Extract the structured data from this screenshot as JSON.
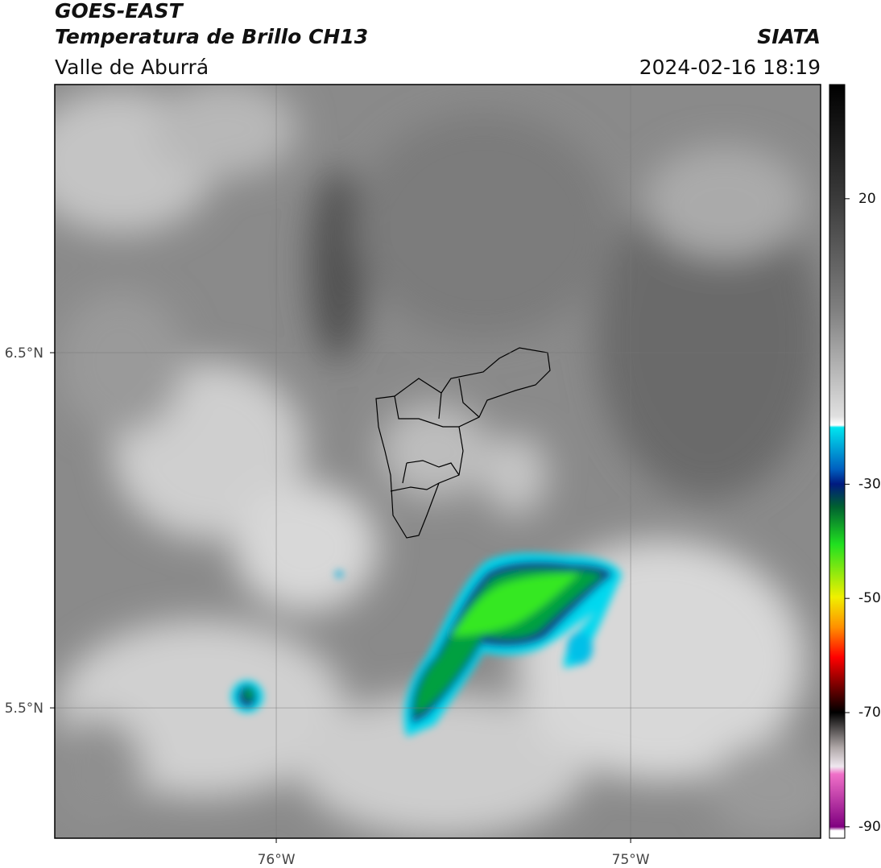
{
  "header": {
    "title": "GOES-EAST",
    "subtitle": "Temperatura de Brillo CH13",
    "region": "Valle de Aburrá",
    "source": "SIATA",
    "timestamp": "2024-02-16 18:19"
  },
  "map": {
    "latlim": [
      5.133,
      7.255
    ],
    "lonlim": [
      -76.625,
      -74.464
    ],
    "latticks": [
      {
        "value": 5.5,
        "label": "5.5°N"
      },
      {
        "value": 6.5,
        "label": "6.5°N"
      }
    ],
    "lonticks": [
      {
        "value": -76,
        "label": "76°W"
      },
      {
        "value": -75,
        "label": "75°W"
      }
    ],
    "grid": true
  },
  "colorbar": {
    "lim": [
      -92,
      40
    ],
    "ticks": [
      -90,
      -70,
      -50,
      -30,
      20
    ]
  }
}
